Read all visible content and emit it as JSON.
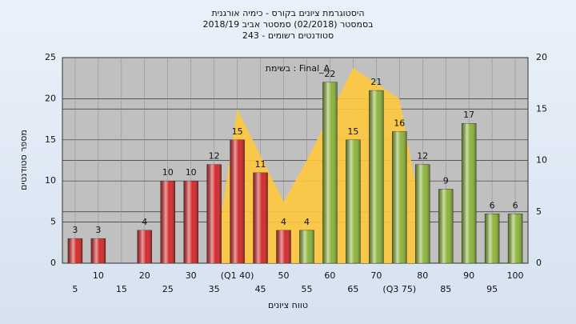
{
  "chart_data": {
    "type": "bar",
    "title": [
      "היסטוגרמת ציונים בקורס - כימיה אורגנית",
      "בסמסטר  (02/2018)  סמסטר אביב 2018/19",
      "243 - סטודנטים רשומים"
    ],
    "annotation": "בשימת : Final_A",
    "x_label": "טווח ציונים",
    "y_label": "מספר סטודנטים",
    "categories": [
      "5",
      "10",
      "15",
      "20",
      "25",
      "30",
      "35",
      "(Q1 40)",
      "45",
      "50",
      "55",
      "60",
      "65",
      "70",
      "(Q3 75)",
      "80",
      "85",
      "90",
      "95",
      "100"
    ],
    "series": [
      {
        "name": null,
        "color": "#d42a2a",
        "values": [
          3,
          3,
          null,
          4,
          10,
          10,
          12,
          15,
          11,
          4,
          null,
          null,
          null,
          null,
          null,
          null,
          null,
          null,
          null,
          null
        ]
      },
      {
        "name": null,
        "color": "#8cb43c",
        "values": [
          null,
          null,
          null,
          null,
          null,
          null,
          null,
          null,
          null,
          null,
          4,
          22,
          15,
          21,
          16,
          12,
          9,
          17,
          6,
          6
        ]
      },
      {
        "name": null,
        "color": "#ffc83c",
        "axis": "y2",
        "area": true,
        "values": [
          null,
          null,
          null,
          null,
          null,
          null,
          0,
          15,
          10.5,
          6,
          10,
          14.5,
          19,
          17.5,
          16,
          4,
          null,
          null,
          null,
          null
        ]
      }
    ],
    "ylim": [
      0,
      25
    ],
    "yticks": [
      0,
      5,
      10,
      15,
      20,
      25
    ],
    "y2lim": [
      0,
      20
    ],
    "y2ticks": [
      0,
      5,
      10,
      15,
      20
    ],
    "grid": true
  }
}
